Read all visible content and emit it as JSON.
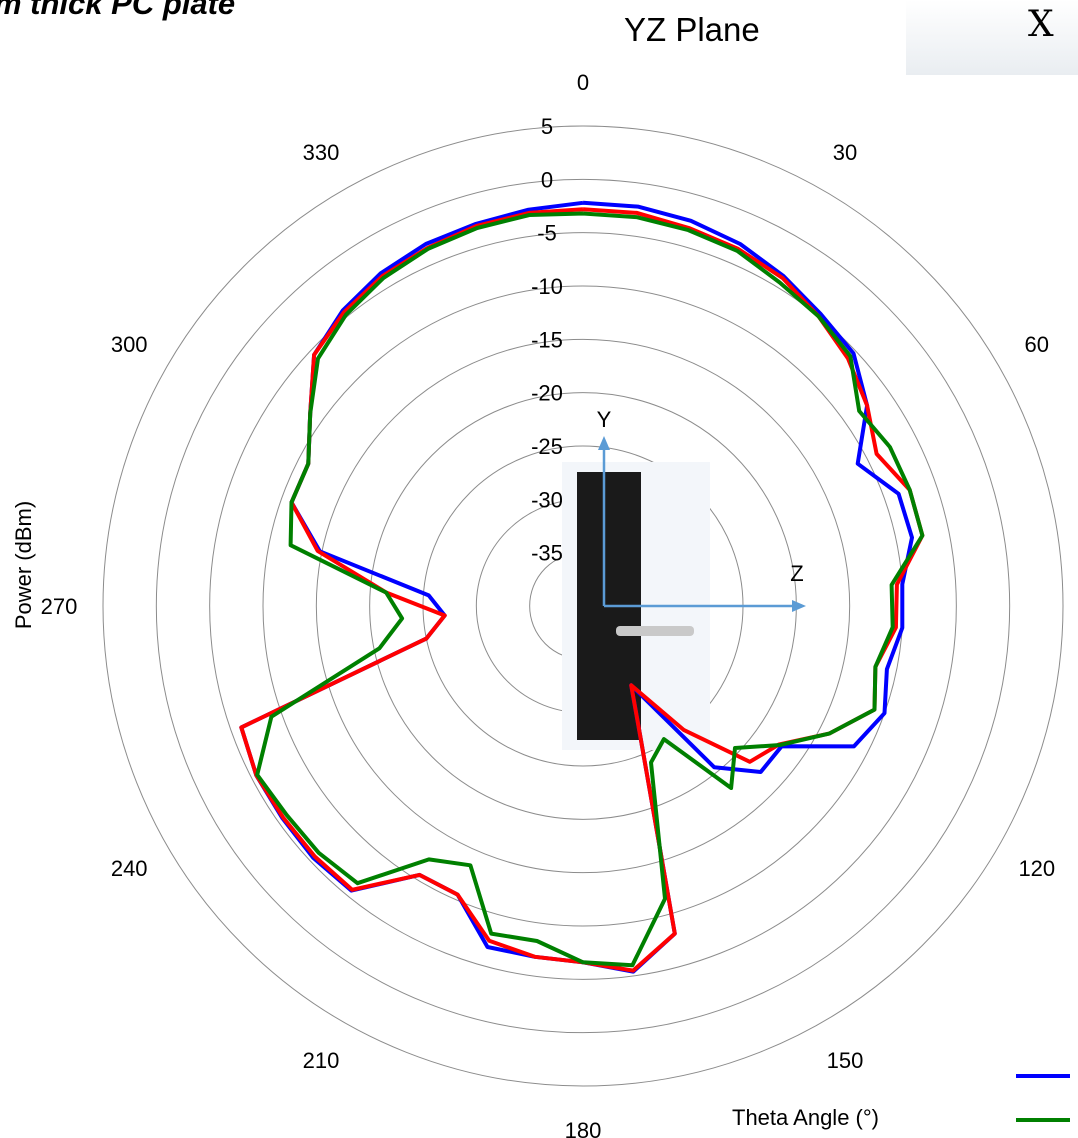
{
  "corner_text": "m thick PC plate",
  "corner_glyph": "X",
  "chart_data": {
    "type": "polar-line",
    "title": "YZ Plane",
    "ylabel": "Power (dBm)",
    "xlabel": "Theta  Angle (°)",
    "r_range": [
      -40,
      5
    ],
    "r_ticks": [
      5,
      0,
      -5,
      -10,
      -15,
      -20,
      -25,
      -30,
      -35
    ],
    "angle_ticks": [
      0,
      30,
      60,
      90,
      120,
      150,
      180,
      210,
      240,
      270,
      300,
      330
    ],
    "angle_labels": [
      "0",
      "30",
      "60",
      "",
      "120",
      "150",
      "180",
      "210",
      "240",
      "270",
      "300",
      "330"
    ],
    "series": [
      {
        "color": "#0000ff",
        "values": [
          -2.2,
          -2.2,
          -2.5,
          -3.0,
          -3.8,
          -4.7,
          -5.3,
          -7.4,
          -11.0,
          -8.6,
          -8.5,
          -10.0,
          -10.0,
          -10.9,
          -10.0,
          -11.4,
          -17.2,
          -17.2,
          -20.5,
          -31.3,
          -26.4,
          -8.1,
          -5.4,
          -6.6,
          -6.8,
          -6.8,
          -10.5,
          -10.5,
          -5.6,
          -5.4,
          -5.5,
          -5.5,
          -6.0,
          -25.0,
          -27.0,
          -25.5,
          -14.8,
          -11.0,
          -11.0,
          -8.7,
          -5.5,
          -4.3,
          -3.5,
          -3.0,
          -2.8,
          -2.5
        ]
      },
      {
        "color": "#ff0000",
        "values": [
          -2.8,
          -2.8,
          -3.2,
          -3.5,
          -4.0,
          -5.0,
          -6.0,
          -7.4,
          -9.0,
          -7.5,
          -7.5,
          -10.5,
          -10.6,
          -12.0,
          -11.0,
          -14.0,
          -17.5,
          -18.6,
          -25.0,
          -31.3,
          -26.4,
          -8.1,
          -5.5,
          -6.6,
          -6.8,
          -7.4,
          -10.5,
          -10.5,
          -5.7,
          -5.6,
          -5.6,
          -5.5,
          -6.0,
          -25.0,
          -27.0,
          -21.5,
          -14.6,
          -11.0,
          -11.0,
          -8.7,
          -5.5,
          -4.5,
          -3.8,
          -3.4,
          -3.0,
          -2.8
        ]
      },
      {
        "color": "#008000",
        "values": [
          -3.2,
          -3.2,
          -3.4,
          -3.7,
          -4.5,
          -5.0,
          -5.7,
          -8.3,
          -7.6,
          -7.5,
          -7.5,
          -11.0,
          -10.9,
          -12.0,
          -11.0,
          -14.0,
          -17.4,
          -20.5,
          -18.0,
          -25.4,
          -24.0,
          -11.5,
          -6.0,
          -6.6,
          -8.3,
          -8.1,
          -13.5,
          -12.2,
          -6.5,
          -6.1,
          -6.0,
          -5.6,
          -9.0,
          -20.5,
          -23.0,
          -21.5,
          -12.0,
          -11.0,
          -11.0,
          -8.7,
          -6.0,
          -4.8,
          -4.0,
          -3.5,
          -3.2,
          -3.0
        ]
      }
    ],
    "legend": {
      "position": "bottom-right"
    }
  }
}
